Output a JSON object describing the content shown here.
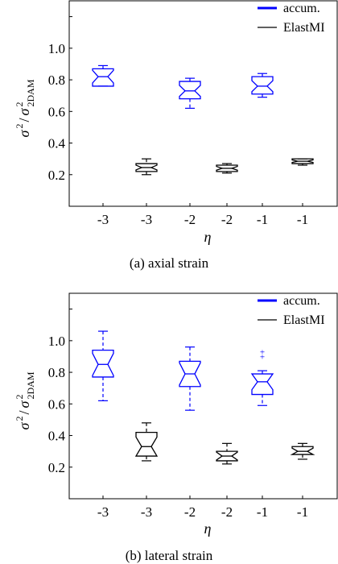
{
  "colors": {
    "accum": "#0000ff",
    "elastmi": "#000000",
    "axis": "#000000"
  },
  "chart_data": [
    {
      "type": "box",
      "caption": "(a)  axial strain",
      "xlabel": "η",
      "ylabel_main": "σ",
      "ylabel_sup": "2",
      "ylabel_den": "σ",
      "ylabel_den_sup": "2",
      "ylabel_den_sub": "2DAM",
      "ylim": [
        0.0,
        1.3
      ],
      "yticks": [
        "0.2",
        "0.4",
        "0.6",
        "0.8",
        "1.0"
      ],
      "legend_position": "top-right",
      "legend": [
        "accum.",
        "ElastMI"
      ],
      "categories": [
        "-3",
        "-3",
        "-2",
        "-2",
        "-1",
        "-1"
      ],
      "boxes": [
        {
          "series": "accum.",
          "min": 0.76,
          "q1": 0.76,
          "median": 0.82,
          "q3": 0.87,
          "max": 0.89,
          "notch": 0.04,
          "outliers": []
        },
        {
          "series": "ElastMI",
          "min": 0.2,
          "q1": 0.22,
          "median": 0.245,
          "q3": 0.27,
          "max": 0.3,
          "notch": 0.015,
          "outliers": []
        },
        {
          "series": "accum.",
          "min": 0.62,
          "q1": 0.68,
          "median": 0.73,
          "q3": 0.79,
          "max": 0.81,
          "notch": 0.035,
          "outliers": []
        },
        {
          "series": "ElastMI",
          "min": 0.21,
          "q1": 0.22,
          "median": 0.24,
          "q3": 0.26,
          "max": 0.27,
          "notch": 0.012,
          "outliers": []
        },
        {
          "series": "accum.",
          "min": 0.69,
          "q1": 0.71,
          "median": 0.76,
          "q3": 0.82,
          "max": 0.84,
          "notch": 0.035,
          "outliers": []
        },
        {
          "series": "ElastMI",
          "min": 0.26,
          "q1": 0.27,
          "median": 0.285,
          "q3": 0.3,
          "max": 0.3,
          "notch": 0.008,
          "outliers": []
        }
      ]
    },
    {
      "type": "box",
      "caption": "(b)  lateral strain",
      "xlabel": "η",
      "ylabel_main": "σ",
      "ylabel_sup": "2",
      "ylabel_den": "σ",
      "ylabel_den_sup": "2",
      "ylabel_den_sub": "2DAM",
      "ylim": [
        0.0,
        1.3
      ],
      "yticks": [
        "0.2",
        "0.4",
        "0.6",
        "0.8",
        "1.0"
      ],
      "legend_position": "top-right",
      "legend": [
        "accum.",
        "ElastMI"
      ],
      "categories": [
        "-3",
        "-3",
        "-2",
        "-2",
        "-1",
        "-1"
      ],
      "boxes": [
        {
          "series": "accum.",
          "min": 0.62,
          "q1": 0.77,
          "median": 0.85,
          "q3": 0.94,
          "max": 1.06,
          "notch": 0.07,
          "outliers": []
        },
        {
          "series": "ElastMI",
          "min": 0.24,
          "q1": 0.27,
          "median": 0.33,
          "q3": 0.42,
          "max": 0.48,
          "notch": 0.06,
          "outliers": []
        },
        {
          "series": "accum.",
          "min": 0.56,
          "q1": 0.71,
          "median": 0.79,
          "q3": 0.87,
          "max": 0.96,
          "notch": 0.07,
          "outliers": []
        },
        {
          "series": "ElastMI",
          "min": 0.22,
          "q1": 0.24,
          "median": 0.27,
          "q3": 0.3,
          "max": 0.35,
          "notch": 0.025,
          "outliers": []
        },
        {
          "series": "accum.",
          "min": 0.59,
          "q1": 0.66,
          "median": 0.74,
          "q3": 0.79,
          "max": 0.81,
          "notch": 0.05,
          "outliers": [
            0.9,
            0.93
          ]
        },
        {
          "series": "ElastMI",
          "min": 0.25,
          "q1": 0.28,
          "median": 0.3,
          "q3": 0.33,
          "max": 0.35,
          "notch": 0.02,
          "outliers": []
        }
      ]
    }
  ]
}
